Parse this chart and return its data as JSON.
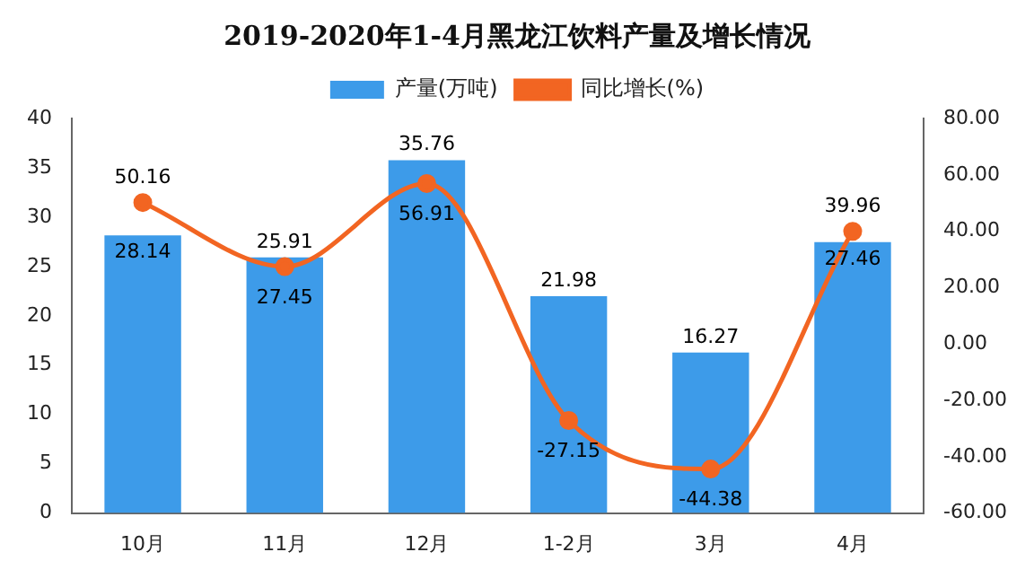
{
  "chart_data": {
    "type": "bar",
    "title": "2019-2020年1-4月黑龙江饮料产量及增长情况",
    "categories": [
      "10月",
      "11月",
      "12月",
      "1-2月",
      "3月",
      "4月"
    ],
    "series": [
      {
        "name": "产量(万吨)",
        "color": "#3d9be9",
        "values": [
          28.14,
          25.91,
          35.76,
          21.98,
          16.27,
          27.46
        ]
      },
      {
        "name": "同比增长(%)",
        "type": "line",
        "axis": "y2",
        "color": "#f26522",
        "marker": "circle",
        "values": [
          50.16,
          27.45,
          56.91,
          -27.15,
          -44.38,
          39.96
        ]
      }
    ],
    "ylim": [
      0,
      40
    ],
    "yticks": [
      0,
      5,
      10,
      15,
      20,
      25,
      30,
      35,
      40
    ],
    "y2lim": [
      -60,
      80
    ],
    "y2ticks": [
      {
        "value": -60,
        "label": "-60.00"
      },
      {
        "value": -40,
        "label": "-40.00"
      },
      {
        "value": -20,
        "label": "-20.00"
      },
      {
        "value": 0,
        "label": "0.00"
      },
      {
        "value": 20,
        "label": "20.00"
      },
      {
        "value": 40,
        "label": "40.00"
      },
      {
        "value": 60,
        "label": "60.00"
      },
      {
        "value": 80,
        "label": "80.00"
      }
    ],
    "grid": false,
    "legend": "top",
    "data_labels": true
  }
}
